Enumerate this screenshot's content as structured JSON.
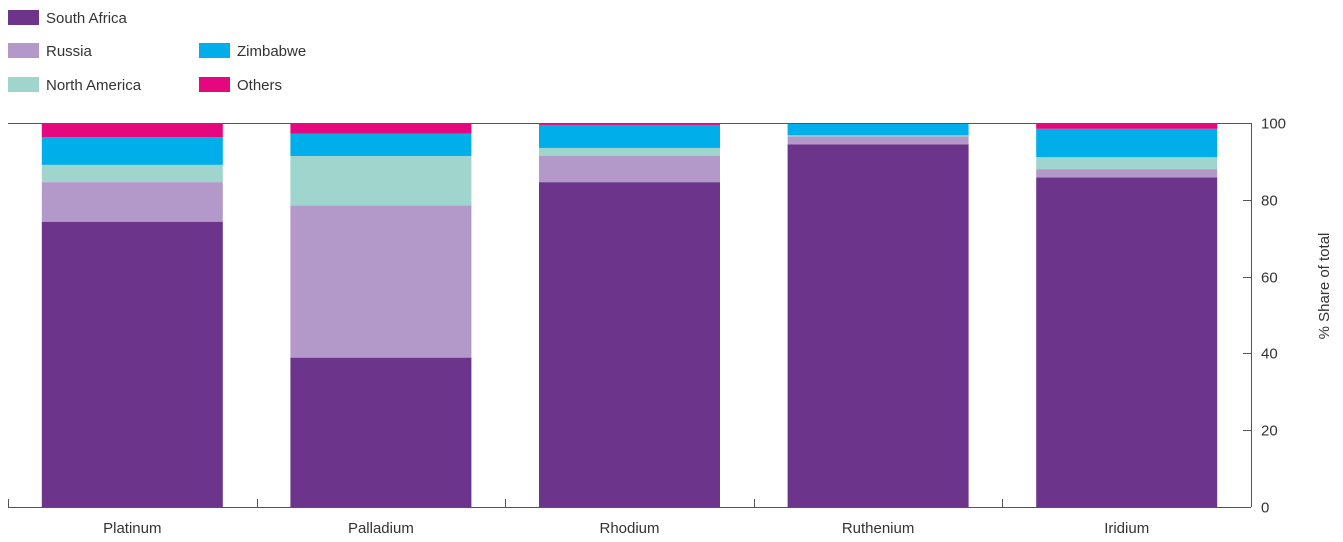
{
  "chart_data": {
    "type": "bar",
    "stacked": true,
    "categories": [
      "Platinum",
      "Palladium",
      "Rhodium",
      "Ruthenium",
      "Iridium"
    ],
    "series": [
      {
        "name": "South Africa",
        "color": "#6c358b",
        "values": [
          74.3,
          38.9,
          84.6,
          94.4,
          85.8
        ]
      },
      {
        "name": "Russia",
        "color": "#b399c9",
        "values": [
          10.3,
          39.6,
          6.9,
          2.1,
          2.2
        ]
      },
      {
        "name": "North America",
        "color": "#a0d5cd",
        "values": [
          4.5,
          12.9,
          2.0,
          0.3,
          3.1
        ]
      },
      {
        "name": "Zimbabwe",
        "color": "#00aee9",
        "values": [
          7.2,
          5.8,
          6.0,
          3.0,
          7.4
        ]
      },
      {
        "name": "Others",
        "color": "#e5077e",
        "values": [
          3.7,
          2.8,
          0.5,
          0.2,
          1.5
        ]
      }
    ],
    "ylabel": "% Share of total",
    "ylim": [
      0,
      100
    ],
    "yticks": [
      0,
      20,
      40,
      60,
      80,
      100
    ],
    "legend_position": "top-left",
    "grid": false
  }
}
